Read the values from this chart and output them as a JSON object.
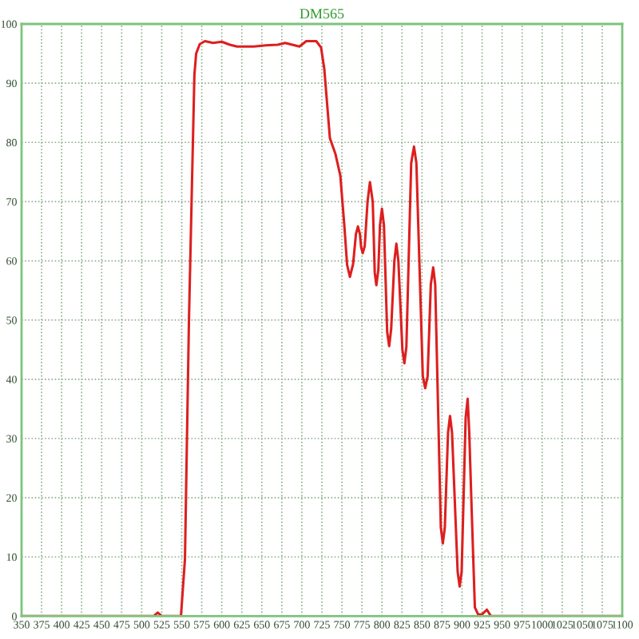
{
  "chart_data": {
    "type": "line",
    "title": "DM565",
    "x": [
      350,
      500,
      515,
      520,
      525,
      549,
      554,
      559,
      565.8,
      568,
      572.5,
      579,
      589,
      600,
      610,
      619,
      640,
      655,
      670,
      679,
      697,
      705.5,
      718,
      724,
      728,
      735,
      742,
      748,
      753,
      756.5,
      760,
      764,
      767.5,
      770,
      772.5,
      774,
      776,
      778.5,
      782,
      785,
      788.5,
      791,
      793,
      795.5,
      797.5,
      800,
      802.5,
      806.5,
      809,
      811.5,
      815.5,
      818,
      820.5,
      825.5,
      828,
      830.5,
      836.5,
      840,
      843,
      851,
      854,
      857,
      861,
      864,
      866.5,
      873.5,
      876,
      878.5,
      882.5,
      885,
      887.5,
      894.5,
      897,
      899.5,
      904.5,
      907,
      909,
      912,
      916,
      920,
      925,
      931,
      936,
      1100
    ],
    "values": [
      0,
      0,
      0,
      0.6,
      0,
      0,
      9.6,
      50,
      91.4,
      95,
      96.6,
      97.1,
      96.8,
      97,
      96.5,
      96.2,
      96.2,
      96.4,
      96.5,
      96.8,
      96.2,
      97.1,
      97.1,
      96,
      92.4,
      80.7,
      78,
      74.4,
      66,
      59.3,
      57.3,
      59.5,
      64.5,
      65.8,
      64.5,
      62.3,
      61.3,
      62.5,
      70,
      73.3,
      70,
      58,
      55.9,
      58.5,
      66,
      68.8,
      66,
      48,
      45.6,
      48.5,
      60,
      62.9,
      60,
      45,
      42.7,
      45.5,
      76.5,
      79.3,
      76.5,
      40.5,
      38.5,
      40.5,
      56,
      58.9,
      56,
      15,
      12.3,
      15,
      31,
      33.8,
      31,
      7.5,
      5,
      7.5,
      33.5,
      36.7,
      31,
      18,
      1.5,
      0.3,
      0.3,
      1.1,
      0,
      0
    ],
    "color": "#dd1f1f",
    "line_style": "solid",
    "marker": "none",
    "xlim": [
      350,
      1100
    ],
    "ylim": [
      0,
      100
    ],
    "xticks": [
      350,
      375,
      400,
      425,
      450,
      475,
      500,
      525,
      550,
      575,
      600,
      625,
      650,
      675,
      700,
      725,
      750,
      775,
      800,
      825,
      850,
      875,
      900,
      925,
      950,
      975,
      1000,
      1025,
      1050,
      1075,
      1100
    ],
    "yticks": [
      0,
      10,
      20,
      30,
      40,
      50,
      60,
      70,
      80,
      90,
      100
    ],
    "grid": true
  }
}
